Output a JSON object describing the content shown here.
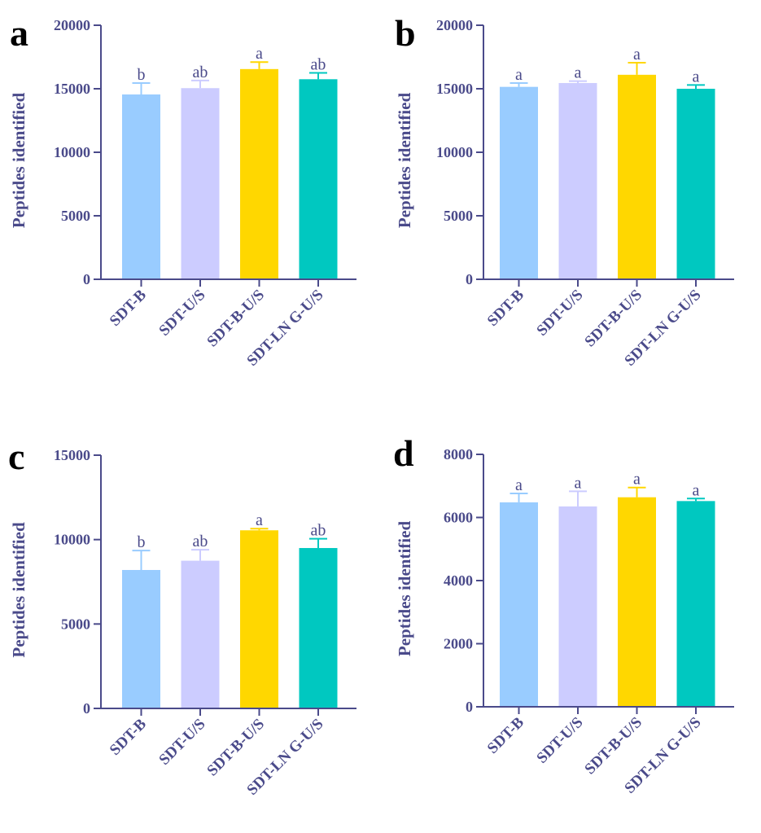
{
  "colors": {
    "axis": "#4a4a8a",
    "text": "#4a4a8a",
    "bars": [
      "#99ccff",
      "#ccccff",
      "#ffd700",
      "#00c8c0"
    ]
  },
  "chart_data": [
    {
      "panel": "a",
      "type": "bar",
      "ylabel": "Peptides identified",
      "categories": [
        "SDT-B",
        "SDT-U/S",
        "SDT-B-U/S",
        "SDT-LN G-U/S"
      ],
      "values": [
        14550,
        15050,
        16550,
        15750
      ],
      "errors": [
        900,
        600,
        550,
        500
      ],
      "significance": [
        "b",
        "ab",
        "a",
        "ab"
      ],
      "ylim": [
        0,
        20000
      ],
      "yticks": [
        "0",
        "5000",
        "10000",
        "15000",
        "20000"
      ]
    },
    {
      "panel": "b",
      "type": "bar",
      "ylabel": "Peptides identified",
      "categories": [
        "SDT-B",
        "SDT-U/S",
        "SDT-B-U/S",
        "SDT-LN G-U/S"
      ],
      "values": [
        15150,
        15450,
        16100,
        15000
      ],
      "errors": [
        300,
        150,
        950,
        300
      ],
      "significance": [
        "a",
        "a",
        "a",
        "a"
      ],
      "ylim": [
        0,
        20000
      ],
      "yticks": [
        "0",
        "5000",
        "10000",
        "15000",
        "20000"
      ]
    },
    {
      "panel": "c",
      "type": "bar",
      "ylabel": "Peptides identified",
      "categories": [
        "SDT-B",
        "SDT-U/S",
        "SDT-B-U/S",
        "SDT-LN G-U/S"
      ],
      "values": [
        8200,
        8750,
        10550,
        9500
      ],
      "errors": [
        1150,
        650,
        100,
        550
      ],
      "significance": [
        "b",
        "ab",
        "a",
        "ab"
      ],
      "ylim": [
        0,
        15000
      ],
      "yticks": [
        "0",
        "5000",
        "10000",
        "15000"
      ]
    },
    {
      "panel": "d",
      "type": "bar",
      "ylabel": "Peptides identified",
      "categories": [
        "SDT-B",
        "SDT-U/S",
        "SDT-B-U/S",
        "SDT-LN G-U/S"
      ],
      "values": [
        6480,
        6350,
        6640,
        6520
      ],
      "errors": [
        280,
        480,
        310,
        80
      ],
      "significance": [
        "a",
        "a",
        "a",
        "a"
      ],
      "ylim": [
        0,
        8000
      ],
      "yticks": [
        "0",
        "2000",
        "4000",
        "6000",
        "8000"
      ]
    }
  ]
}
